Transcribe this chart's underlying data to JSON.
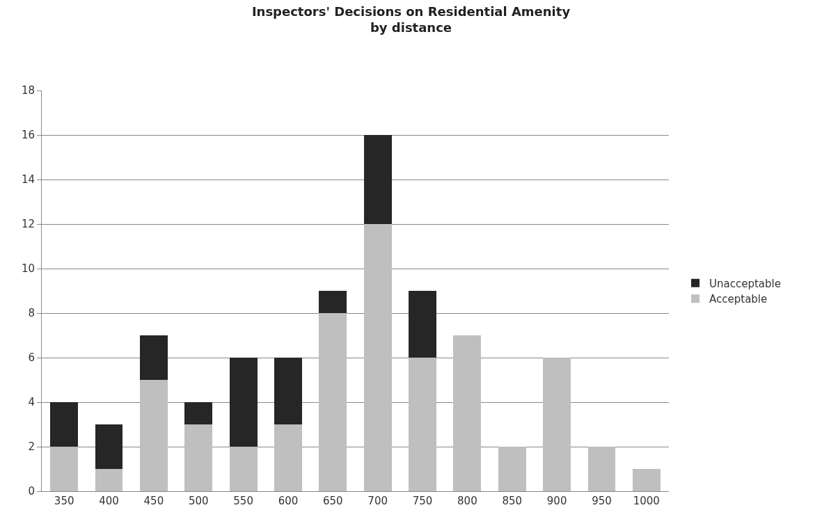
{
  "chart_data": {
    "type": "bar",
    "title": "Inspectors' Decisions on Residential Amenity\nby distance",
    "categories": [
      "350",
      "400",
      "450",
      "500",
      "550",
      "600",
      "650",
      "700",
      "750",
      "800",
      "850",
      "900",
      "950",
      "1000"
    ],
    "stacked": true,
    "series": [
      {
        "name": "Acceptable",
        "color": "#bfbfbf",
        "values": [
          2,
          1,
          5,
          3,
          2,
          3,
          8,
          12,
          6,
          7,
          2,
          6,
          2,
          1
        ]
      },
      {
        "name": "Unacceptable",
        "color": "#262626",
        "values": [
          2,
          2,
          2,
          1,
          4,
          3,
          1,
          4,
          3,
          0,
          0,
          0,
          0,
          0
        ]
      }
    ],
    "ylim": [
      0,
      18
    ],
    "yticks": [
      0,
      2,
      4,
      6,
      8,
      10,
      12,
      14,
      16,
      18
    ],
    "grid": "y",
    "legend": "right"
  }
}
